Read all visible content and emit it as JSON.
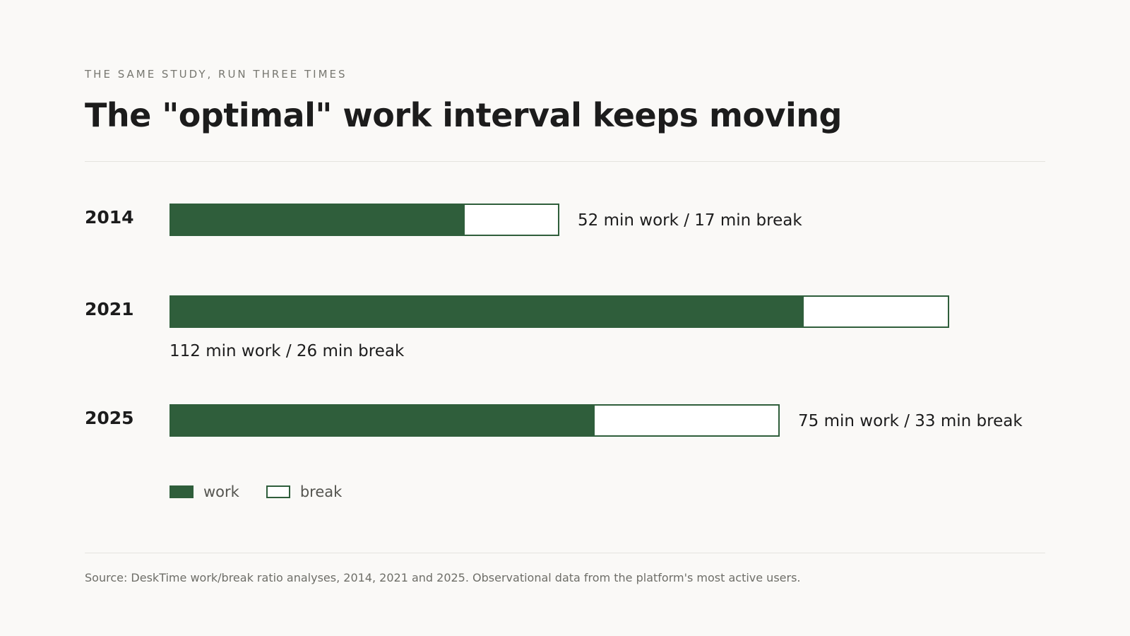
{
  "header": {
    "kicker": "THE SAME STUDY, RUN THREE TIMES",
    "title": "The \"optimal\" work interval keeps moving"
  },
  "colors": {
    "work": "#2f5e3b",
    "break": "#ffffff",
    "text": "#1c1c1c",
    "muted": "#6e6e68",
    "background": "#faf9f7"
  },
  "chart_data": {
    "type": "bar",
    "orientation": "horizontal",
    "stacked": true,
    "categories": [
      "2014",
      "2021",
      "2025"
    ],
    "series": [
      {
        "name": "work",
        "values": [
          52,
          112,
          75
        ]
      },
      {
        "name": "break",
        "values": [
          17,
          26,
          33
        ]
      }
    ],
    "data_labels": [
      "52 min work / 17 min break",
      "112 min work / 26 min break",
      "75 min work / 33 min break"
    ],
    "units": "minutes",
    "legend": [
      "work",
      "break"
    ],
    "grid": false,
    "legend_position": "bottom-left",
    "title": "The \"optimal\" work interval keeps moving",
    "xlabel": "",
    "ylabel": ""
  },
  "legend": {
    "work_label": "work",
    "break_label": "break"
  },
  "footer": {
    "source": "Source: DeskTime work/break ratio analyses, 2014, 2021 and 2025. Observational data from the platform's most active users."
  }
}
